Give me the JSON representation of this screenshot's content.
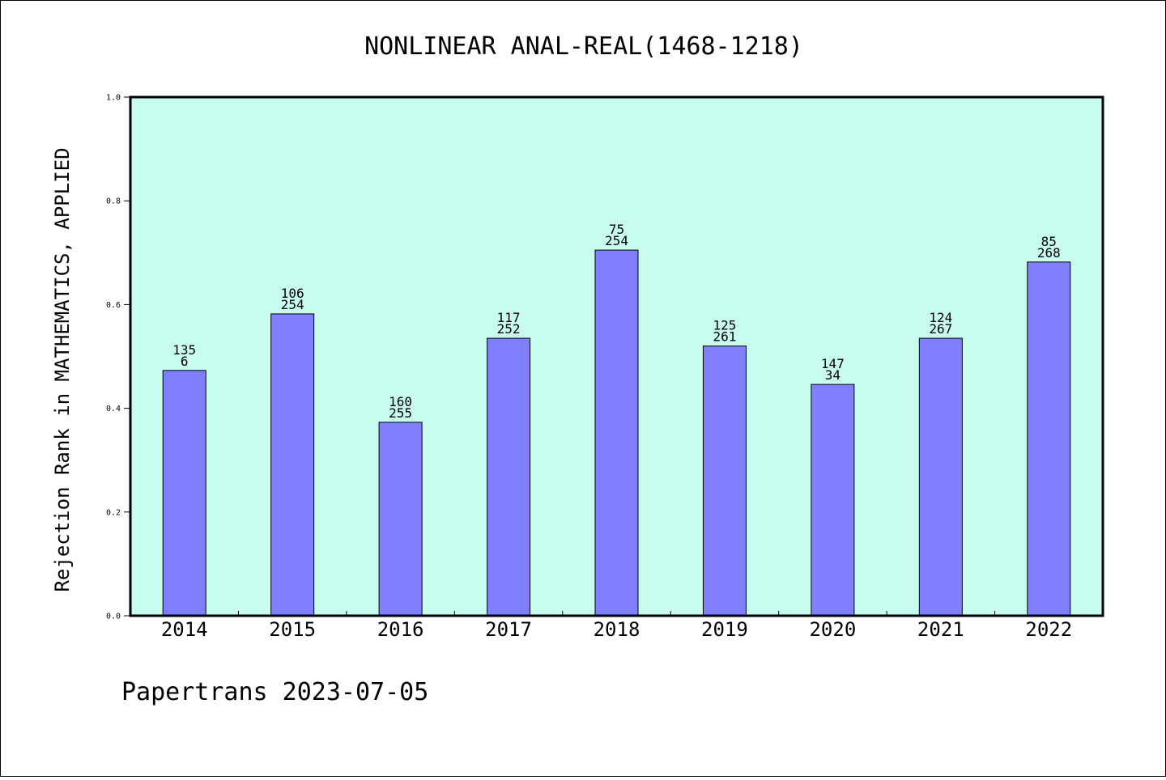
{
  "chart_data": {
    "type": "bar",
    "title": "NONLINEAR ANAL-REAL(1468-1218)",
    "xlabel": "",
    "ylabel": "Rejection Rank in MATHEMATICS, APPLIED",
    "categories": [
      "2014",
      "2015",
      "2016",
      "2017",
      "2018",
      "2019",
      "2020",
      "2021",
      "2022"
    ],
    "values": [
      0.473,
      0.582,
      0.373,
      0.535,
      0.705,
      0.52,
      0.446,
      0.535,
      0.682
    ],
    "label_top": [
      "135",
      "106",
      "160",
      "117",
      "75",
      "125",
      "147",
      "124",
      "85"
    ],
    "label_bottom": [
      "6",
      "254",
      "255",
      "252",
      "254",
      "261",
      "34",
      "267",
      "268"
    ],
    "ylim": [
      0,
      1
    ],
    "yticks": [
      "0.0",
      "0.2",
      "0.4",
      "0.6",
      "0.8",
      "1.0"
    ],
    "grid": false,
    "colors": {
      "plot_bg": "#c8fcee",
      "bar": "#8080ff"
    }
  },
  "footer": {
    "text": "Papertrans 2023-07-05"
  }
}
